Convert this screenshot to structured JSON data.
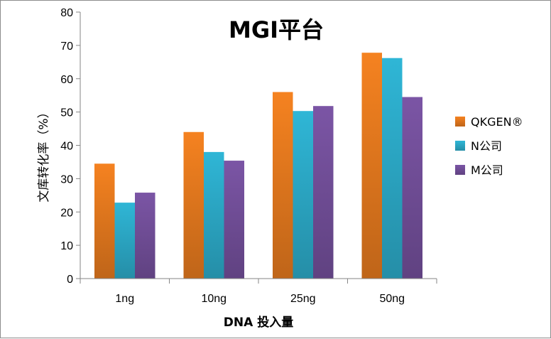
{
  "chart_data": {
    "type": "bar",
    "title": "MGI平台",
    "xlabel": "DNA 投入量",
    "ylabel": "文库转化率（%）",
    "categories": [
      "1ng",
      "10ng",
      "25ng",
      "50ng"
    ],
    "ylim": [
      0,
      80
    ],
    "yticks": [
      0,
      10,
      20,
      30,
      40,
      50,
      60,
      70,
      80
    ],
    "grid": false,
    "legend_position": "right",
    "series": [
      {
        "name": "QKGEN®",
        "color": "#f58220",
        "values": [
          34.5,
          44,
          56,
          67.8
        ]
      },
      {
        "name": "N公司",
        "color": "#2fb6d6",
        "values": [
          22.8,
          38,
          50.3,
          66.2
        ]
      },
      {
        "name": "M公司",
        "color": "#7b55a5",
        "values": [
          25.8,
          35.4,
          51.8,
          54.5
        ]
      }
    ]
  }
}
